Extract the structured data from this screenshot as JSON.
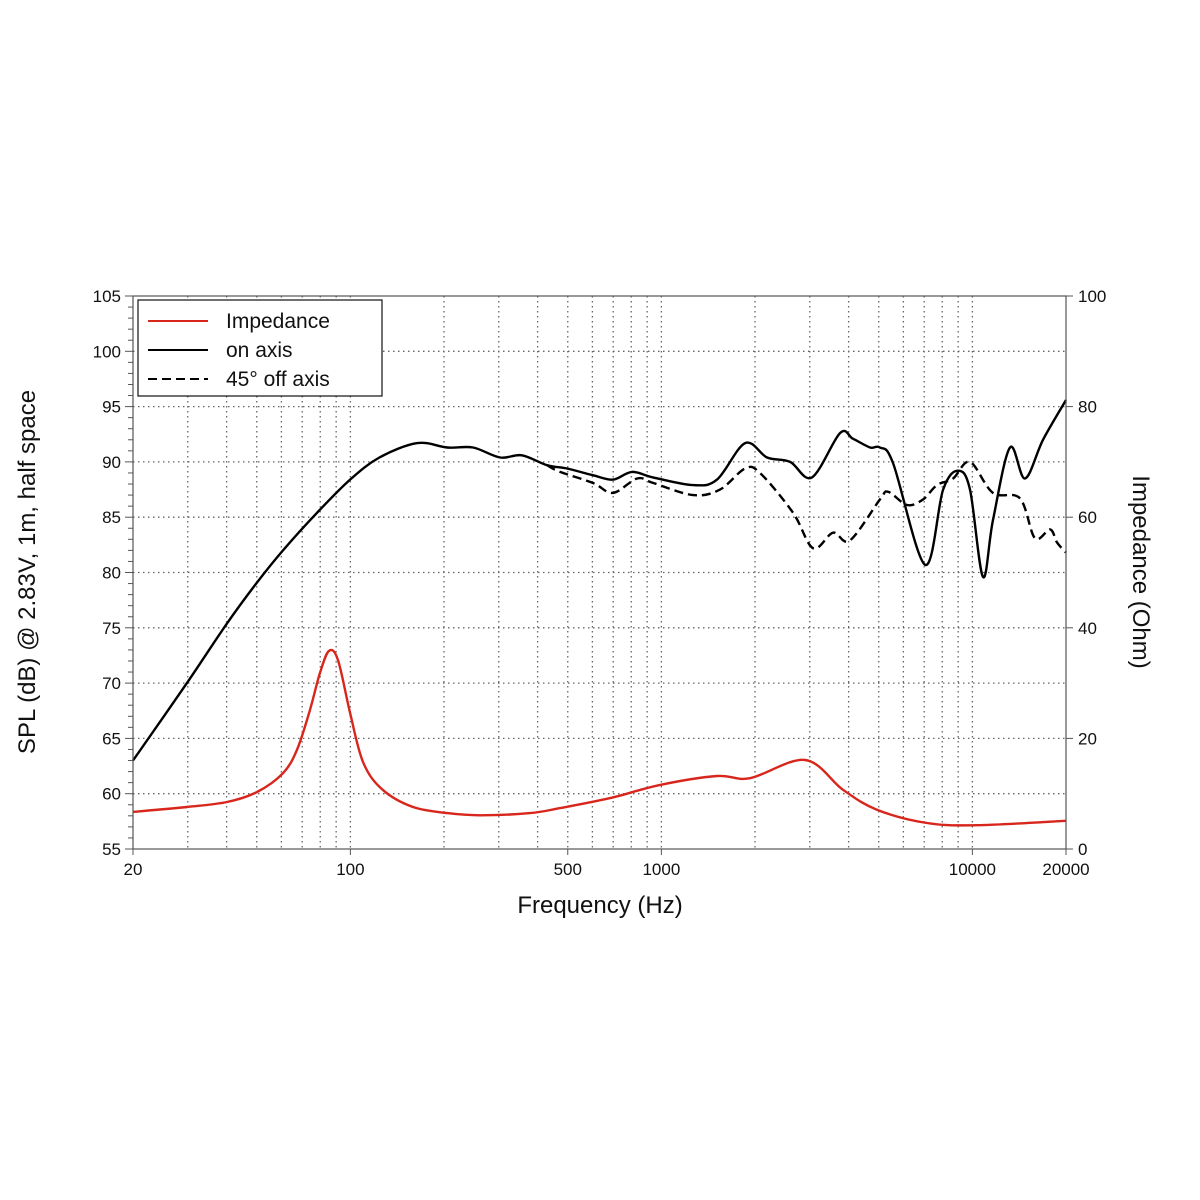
{
  "chart_data": {
    "type": "line",
    "title": "",
    "xlabel": "Frequency (Hz)",
    "ylabel": "SPL (dB) @ 2.83V, 1m, half space",
    "y2label": "Impedance (Ohm)",
    "xscale": "log",
    "xlim": [
      20,
      20000
    ],
    "ylim": [
      55,
      105
    ],
    "y2lim": [
      0,
      100
    ],
    "xticks": [
      20,
      100,
      500,
      1000,
      10000,
      20000
    ],
    "xtick_labels": [
      "20",
      "100",
      "500",
      "1000",
      "10000",
      "20000"
    ],
    "yticks": [
      55,
      60,
      65,
      70,
      75,
      80,
      85,
      90,
      95,
      100,
      105
    ],
    "y2ticks": [
      0,
      20,
      40,
      60,
      80,
      100
    ],
    "grid": true,
    "legend_position": "top-left",
    "colors": {
      "impedance": "#d8261c",
      "on_axis": "#000000",
      "off_axis": "#000000"
    },
    "series": [
      {
        "name": "Impedance",
        "axis": "right",
        "style": "solid",
        "color": "#d8261c",
        "points": [
          [
            20,
            6.7
          ],
          [
            29.8,
            7.6
          ],
          [
            40.1,
            8.5
          ],
          [
            50.1,
            10.3
          ],
          [
            60.7,
            13.7
          ],
          [
            67.3,
            17.9
          ],
          [
            74.1,
            25.1
          ],
          [
            79.8,
            31.8
          ],
          [
            85.3,
            35.8
          ],
          [
            91.2,
            34.2
          ],
          [
            99.8,
            24.6
          ],
          [
            110,
            15.6
          ],
          [
            127,
            10.7
          ],
          [
            159,
            7.6
          ],
          [
            205,
            6.5
          ],
          [
            261,
            6.1
          ],
          [
            378,
            6.5
          ],
          [
            472,
            7.4
          ],
          [
            684,
            9.2
          ],
          [
            991,
            11.6
          ],
          [
            1510,
            13.2
          ],
          [
            1927,
            12.8
          ],
          [
            2899,
            16.1
          ],
          [
            3838,
            10.7
          ],
          [
            4933,
            7.1
          ],
          [
            7145,
            4.7
          ],
          [
            10350,
            4.3
          ],
          [
            20000,
            5.1
          ]
        ]
      },
      {
        "name": "on axis",
        "axis": "left",
        "style": "solid",
        "color": "#000000",
        "points": [
          [
            20,
            63.0
          ],
          [
            29.8,
            70.0
          ],
          [
            40.1,
            75.4
          ],
          [
            50.1,
            79.1
          ],
          [
            60.7,
            82.0
          ],
          [
            78.1,
            85.4
          ],
          [
            99.8,
            88.4
          ],
          [
            124,
            90.4
          ],
          [
            164,
            91.7
          ],
          [
            205,
            91.3
          ],
          [
            248,
            91.3
          ],
          [
            303,
            90.4
          ],
          [
            356,
            90.6
          ],
          [
            429,
            89.7
          ],
          [
            497,
            89.4
          ],
          [
            602,
            88.8
          ],
          [
            699,
            88.4
          ],
          [
            805,
            89.1
          ],
          [
            940,
            88.6
          ],
          [
            1264,
            87.9
          ],
          [
            1510,
            88.4
          ],
          [
            1858,
            91.7
          ],
          [
            2188,
            90.4
          ],
          [
            2594,
            90.0
          ],
          [
            3050,
            88.6
          ],
          [
            3752,
            92.6
          ],
          [
            4130,
            92.1
          ],
          [
            4688,
            91.3
          ],
          [
            5044,
            91.3
          ],
          [
            5558,
            89.9
          ],
          [
            7046,
            80.7
          ],
          [
            8054,
            87.5
          ],
          [
            8997,
            89.2
          ],
          [
            9823,
            87.5
          ],
          [
            10815,
            79.6
          ],
          [
            11640,
            84.7
          ],
          [
            13210,
            91.3
          ],
          [
            14760,
            88.5
          ],
          [
            16870,
            92.0
          ],
          [
            20000,
            95.6
          ]
        ]
      },
      {
        "name": "45° off axis",
        "axis": "left",
        "style": "dashed",
        "color": "#000000",
        "points": [
          [
            429,
            89.7
          ],
          [
            472,
            89.1
          ],
          [
            602,
            88.1
          ],
          [
            699,
            87.2
          ],
          [
            836,
            88.5
          ],
          [
            940,
            88.1
          ],
          [
            1264,
            87.0
          ],
          [
            1543,
            87.5
          ],
          [
            1858,
            89.4
          ],
          [
            2075,
            89.0
          ],
          [
            2651,
            85.4
          ],
          [
            3075,
            82.2
          ],
          [
            3565,
            83.6
          ],
          [
            4037,
            82.9
          ],
          [
            5044,
            86.6
          ],
          [
            5357,
            87.3
          ],
          [
            6166,
            86.1
          ],
          [
            6936,
            86.6
          ],
          [
            7692,
            87.9
          ],
          [
            8672,
            88.5
          ],
          [
            9823,
            90.0
          ],
          [
            11640,
            87.2
          ],
          [
            14230,
            86.7
          ],
          [
            15890,
            83.1
          ],
          [
            17780,
            83.9
          ],
          [
            18720,
            82.7
          ],
          [
            20000,
            81.8
          ]
        ]
      }
    ]
  }
}
